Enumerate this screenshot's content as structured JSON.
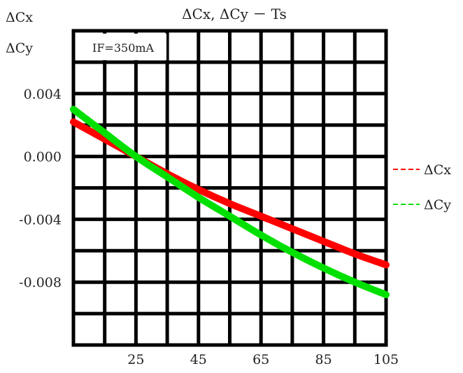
{
  "chart_data": {
    "type": "line",
    "title": "ΔCx,  ΔCy － Ts",
    "ylabel": [
      "ΔCx",
      "ΔCy"
    ],
    "xlabel": "",
    "annotation": "IF=350mA",
    "xlim": [
      5,
      105
    ],
    "ylim": [
      -0.012,
      0.008
    ],
    "x_ticks": [
      25,
      45,
      65,
      85,
      105
    ],
    "y_ticks": [
      0.004,
      0.0,
      -0.004,
      -0.008
    ],
    "x_tick_labels": [
      "25",
      "45",
      "65",
      "85",
      "105"
    ],
    "y_tick_labels": [
      "0.004",
      "0.000",
      "-0.004",
      "-0.008"
    ],
    "grid": true,
    "legend_position": "right",
    "x": [
      5,
      15,
      25,
      35,
      45,
      55,
      65,
      75,
      85,
      95,
      105
    ],
    "series": [
      {
        "name": "ΔCx",
        "color": "#ff0000",
        "values": [
          0.0022,
          0.0011,
          0.0,
          -0.0011,
          -0.0021,
          -0.003,
          -0.0038,
          -0.0046,
          -0.0054,
          -0.0062,
          -0.0069
        ]
      },
      {
        "name": "ΔCy",
        "color": "#00e000",
        "values": [
          0.003,
          0.0015,
          0.0,
          -0.0013,
          -0.0026,
          -0.0038,
          -0.005,
          -0.0061,
          -0.0071,
          -0.008,
          -0.0088
        ]
      }
    ]
  }
}
